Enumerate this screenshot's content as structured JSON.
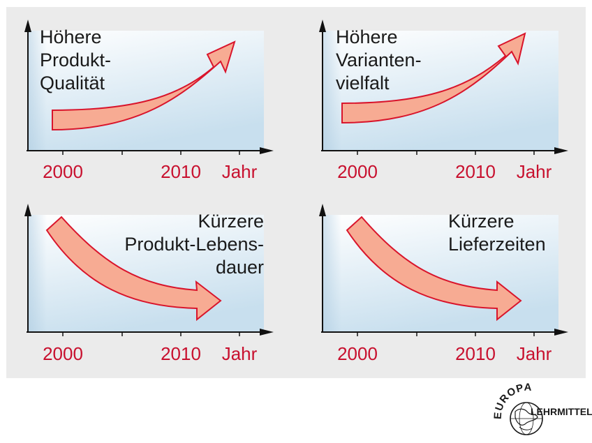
{
  "colors": {
    "panel_bg": "#ebebeb",
    "chart_bg_top": "#ffffff",
    "chart_bg_bottom": "#c8dfee",
    "arrow_fill": "#f7ab93",
    "arrow_stroke": "#d9142b",
    "axis": "#111111",
    "year_text": "#c8102e"
  },
  "axis": {
    "tick_2000": "2000",
    "tick_2010": "2010",
    "unit": "Jahr"
  },
  "panels": [
    {
      "id": "quality",
      "trend": "up",
      "title_lines": [
        "Höhere",
        "Produkt-",
        "Qualität"
      ],
      "title_align": "left"
    },
    {
      "id": "variants",
      "trend": "up",
      "title_lines": [
        "Höhere",
        "Varianten-",
        "vielfalt"
      ],
      "title_align": "left"
    },
    {
      "id": "lifecycle",
      "trend": "down",
      "title_lines": [
        "Kürzere",
        "Produkt-Lebens-",
        "dauer"
      ],
      "title_align": "right"
    },
    {
      "id": "delivery",
      "trend": "down",
      "title_lines": [
        "Kürzere",
        "Lieferzeiten"
      ],
      "title_align": "left"
    }
  ],
  "logo": {
    "top_text": "EUROPA",
    "side_text": "LEHRMITTEL",
    "icon": "globe-icon"
  }
}
